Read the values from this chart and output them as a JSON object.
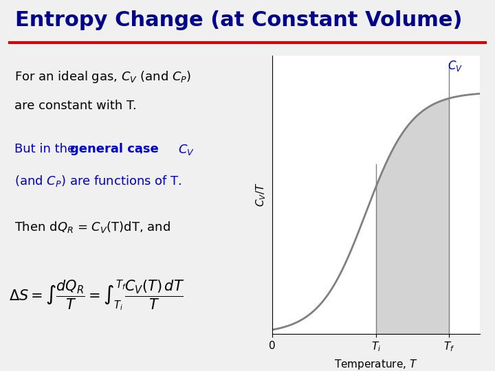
{
  "title": "Entropy Change (at Constant Volume)",
  "title_color": "#00008B",
  "title_underline_color": "#CC0000",
  "background_color": "#F0F0F0",
  "text_line1": "For an ideal gas, $C_V$ (and $C_P$)",
  "text_line2": "are constant with T.",
  "text_line3_prefix": "But in the ",
  "text_line3_bold": "general case",
  "text_line3_suffix": ",",
  "text_line3_cv": "$C_V$",
  "text_line4": "(and $C_P$) are functions of T.",
  "text_line5": "Then d$Q_R$ = $C_V$(T)dT, and",
  "graph_xlabel": "Temperature, $T$",
  "graph_ylabel": "$C_V/T$",
  "graph_cv_label": "$C_V$",
  "tick_0": "0",
  "tick_Ti": "$T_i$",
  "tick_Tf": "$T_f$",
  "curve_color": "#808080",
  "fill_color": "#C8C8C8",
  "fill_alpha": 0.8,
  "text_color_normal": "#000000",
  "text_color_blue": "#0000CC"
}
